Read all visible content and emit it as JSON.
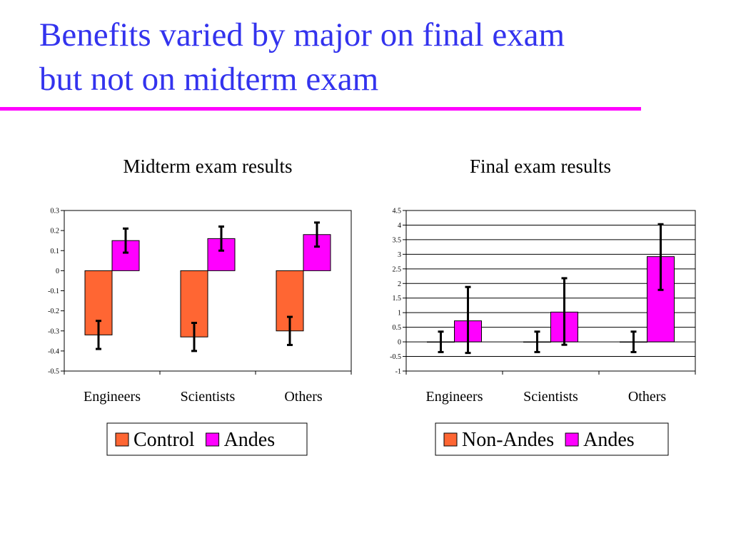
{
  "slide": {
    "title_line1": "Benefits varied by major on final exam",
    "title_line2": "but not on midterm exam",
    "title_color": "#3333ee",
    "rule_color": "#ff00ff"
  },
  "chart_data": [
    {
      "type": "bar",
      "title": "Midterm exam results",
      "categories": [
        "Engineers",
        "Scientists",
        "Others"
      ],
      "series": [
        {
          "name": "Control",
          "color": "#ff6633",
          "values": [
            -0.32,
            -0.33,
            -0.3
          ],
          "error_low": [
            -0.39,
            -0.4,
            -0.37
          ],
          "error_high": [
            -0.25,
            -0.26,
            -0.23
          ]
        },
        {
          "name": "Andes",
          "color": "#ff00ff",
          "values": [
            0.15,
            0.16,
            0.18
          ],
          "error_low": [
            0.09,
            0.1,
            0.12
          ],
          "error_high": [
            0.21,
            0.22,
            0.24
          ]
        }
      ],
      "ylim": [
        -0.5,
        0.3
      ],
      "yticks": [
        "0.3",
        "0.2",
        "0.1",
        "0",
        "-0.1",
        "-0.2",
        "-0.3",
        "-0.4",
        "-0.5"
      ],
      "grid": false,
      "legend": "bottom"
    },
    {
      "type": "bar",
      "title": "Final exam results",
      "categories": [
        "Engineers",
        "Scientists",
        "Others"
      ],
      "series": [
        {
          "name": "Non-Andes",
          "color": "#ff6633",
          "values": [
            0,
            0,
            0
          ],
          "error_low": [
            -0.35,
            -0.35,
            -0.35
          ],
          "error_high": [
            0.35,
            0.35,
            0.35
          ]
        },
        {
          "name": "Andes",
          "color": "#ff00ff",
          "values": [
            0.72,
            1.02,
            2.92
          ],
          "error_low": [
            -0.38,
            -0.1,
            1.78
          ],
          "error_high": [
            1.88,
            2.18,
            4.03
          ]
        }
      ],
      "ylim": [
        -1,
        4.5
      ],
      "yticks": [
        "4.5",
        "4",
        "3.5",
        "3",
        "2.5",
        "2",
        "1.5",
        "1",
        "0.5",
        "0",
        "-0.5",
        "-1"
      ],
      "grid": true,
      "legend": "bottom"
    }
  ]
}
